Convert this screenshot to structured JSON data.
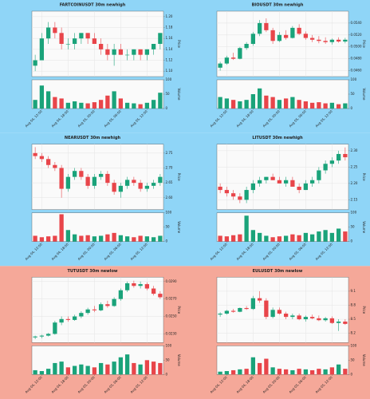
{
  "charts": [
    {
      "type": "candlestick",
      "title": "FARTCOINUSDT 30m newhigh",
      "ylabel": "Price",
      "vlabel": "Volume",
      "background": "#8fd5f7",
      "up_color": "#1aa37a",
      "down_color": "#e8454a",
      "ylim": [
        1.09,
        1.21
      ],
      "yticks": [
        {
          "value": 1.1,
          "label": "1.10"
        },
        {
          "value": 1.12,
          "label": "1.12"
        },
        {
          "value": 1.14,
          "label": "1.14"
        },
        {
          "value": 1.16,
          "label": "1.16"
        },
        {
          "value": 1.18,
          "label": "1.18"
        },
        {
          "value": 1.2,
          "label": "1.20"
        }
      ],
      "vlim": [
        0,
        100
      ],
      "vticks": [
        0,
        50,
        100
      ],
      "xticks": [
        {
          "value": 1,
          "label": "Aug 04, 12:00"
        },
        {
          "value": 5,
          "label": "Aug 04, 18:00"
        },
        {
          "value": 9,
          "label": "Aug 05, 00:00"
        },
        {
          "value": 13,
          "label": "Aug 05, 06:00"
        },
        {
          "value": 17,
          "label": "Aug 05, 12:00"
        }
      ],
      "candles": [
        [
          1.11,
          1.13,
          1.1,
          1.12
        ],
        [
          1.12,
          1.17,
          1.12,
          1.16
        ],
        [
          1.16,
          1.19,
          1.15,
          1.18
        ],
        [
          1.18,
          1.19,
          1.16,
          1.17
        ],
        [
          1.17,
          1.18,
          1.14,
          1.15
        ],
        [
          1.15,
          1.16,
          1.14,
          1.15
        ],
        [
          1.15,
          1.17,
          1.14,
          1.16
        ],
        [
          1.16,
          1.17,
          1.15,
          1.17
        ],
        [
          1.17,
          1.17,
          1.15,
          1.16
        ],
        [
          1.16,
          1.17,
          1.15,
          1.15
        ],
        [
          1.15,
          1.16,
          1.13,
          1.14
        ],
        [
          1.14,
          1.15,
          1.12,
          1.13
        ],
        [
          1.13,
          1.15,
          1.11,
          1.14
        ],
        [
          1.14,
          1.15,
          1.13,
          1.13
        ],
        [
          1.13,
          1.14,
          1.12,
          1.13
        ],
        [
          1.13,
          1.14,
          1.12,
          1.14
        ],
        [
          1.14,
          1.14,
          1.12,
          1.13
        ],
        [
          1.13,
          1.14,
          1.12,
          1.14
        ],
        [
          1.14,
          1.15,
          1.13,
          1.15
        ],
        [
          1.15,
          1.17,
          1.14,
          1.17
        ]
      ],
      "volume": [
        30,
        80,
        60,
        40,
        35,
        20,
        25,
        20,
        18,
        22,
        30,
        45,
        60,
        35,
        20,
        18,
        15,
        20,
        30,
        55
      ]
    },
    {
      "type": "candlestick",
      "title": "BIOUSDT 30m newhigh",
      "ylabel": "Price",
      "vlabel": "Volume",
      "background": "#8fd5f7",
      "up_color": "#1aa37a",
      "down_color": "#e8454a",
      "ylim": [
        0.045,
        0.056
      ],
      "yticks": [
        {
          "value": 0.046,
          "label": "0.0460"
        },
        {
          "value": 0.048,
          "label": "0.0480"
        },
        {
          "value": 0.05,
          "label": "0.0500"
        },
        {
          "value": 0.052,
          "label": "0.0520"
        },
        {
          "value": 0.054,
          "label": "0.0540"
        }
      ],
      "vlim": [
        0,
        100
      ],
      "vticks": [
        0,
        50,
        100
      ],
      "xticks": [
        {
          "value": 1,
          "label": "Aug 04, 12:00"
        },
        {
          "value": 5,
          "label": "Aug 04, 18:00"
        },
        {
          "value": 9,
          "label": "Aug 05, 00:00"
        },
        {
          "value": 13,
          "label": "Aug 05, 06:00"
        },
        {
          "value": 17,
          "label": "Aug 05, 12:00"
        }
      ],
      "candles": [
        [
          0.0465,
          0.0475,
          0.046,
          0.0472
        ],
        [
          0.0472,
          0.0485,
          0.047,
          0.0482
        ],
        [
          0.0482,
          0.049,
          0.0478,
          0.048
        ],
        [
          0.048,
          0.05,
          0.0479,
          0.0498
        ],
        [
          0.0498,
          0.0508,
          0.0495,
          0.0505
        ],
        [
          0.0505,
          0.0525,
          0.0502,
          0.0522
        ],
        [
          0.0522,
          0.0545,
          0.0518,
          0.054
        ],
        [
          0.054,
          0.0548,
          0.0525,
          0.0528
        ],
        [
          0.0528,
          0.0532,
          0.0505,
          0.051
        ],
        [
          0.051,
          0.0525,
          0.0508,
          0.052
        ],
        [
          0.052,
          0.0528,
          0.0512,
          0.0515
        ],
        [
          0.0515,
          0.0535,
          0.0514,
          0.0532
        ],
        [
          0.0532,
          0.0538,
          0.052,
          0.0522
        ],
        [
          0.0522,
          0.0526,
          0.0512,
          0.0515
        ],
        [
          0.0515,
          0.052,
          0.0508,
          0.0512
        ],
        [
          0.0512,
          0.0518,
          0.0506,
          0.051
        ],
        [
          0.051,
          0.0516,
          0.0505,
          0.0508
        ],
        [
          0.0508,
          0.0514,
          0.0504,
          0.0512
        ],
        [
          0.0512,
          0.0516,
          0.0507,
          0.0509
        ],
        [
          0.0509,
          0.0515,
          0.0506,
          0.0512
        ]
      ],
      "volume": [
        40,
        35,
        30,
        25,
        30,
        50,
        70,
        45,
        40,
        30,
        35,
        40,
        30,
        25,
        20,
        22,
        18,
        20,
        15,
        18
      ]
    },
    {
      "type": "candlestick",
      "title": "NEARUSDT 30m newhigh",
      "ylabel": "Price",
      "vlabel": "Volume",
      "background": "#8fd5f7",
      "up_color": "#1aa37a",
      "down_color": "#e8454a",
      "ylim": [
        2.56,
        2.78
      ],
      "yticks": [
        {
          "value": 2.6,
          "label": "2.60"
        },
        {
          "value": 2.65,
          "label": "2.65"
        },
        {
          "value": 2.7,
          "label": "2.70"
        },
        {
          "value": 2.75,
          "label": "2.75"
        }
      ],
      "vlim": [
        0,
        100
      ],
      "vticks": [
        0,
        50,
        100
      ],
      "xticks": [
        {
          "value": 1,
          "label": "Aug 04, 12:00"
        },
        {
          "value": 5,
          "label": "Aug 04, 18:00"
        },
        {
          "value": 9,
          "label": "Aug 05, 00:00"
        },
        {
          "value": 13,
          "label": "Aug 05, 06:00"
        },
        {
          "value": 17,
          "label": "Aug 05, 12:00"
        }
      ],
      "candles": [
        [
          2.75,
          2.77,
          2.73,
          2.74
        ],
        [
          2.74,
          2.75,
          2.72,
          2.73
        ],
        [
          2.73,
          2.74,
          2.7,
          2.71
        ],
        [
          2.71,
          2.72,
          2.69,
          2.7
        ],
        [
          2.7,
          2.71,
          2.6,
          2.63
        ],
        [
          2.63,
          2.68,
          2.62,
          2.67
        ],
        [
          2.67,
          2.7,
          2.66,
          2.69
        ],
        [
          2.69,
          2.7,
          2.66,
          2.67
        ],
        [
          2.67,
          2.68,
          2.63,
          2.64
        ],
        [
          2.64,
          2.68,
          2.63,
          2.67
        ],
        [
          2.67,
          2.69,
          2.66,
          2.68
        ],
        [
          2.68,
          2.69,
          2.64,
          2.65
        ],
        [
          2.65,
          2.66,
          2.61,
          2.62
        ],
        [
          2.62,
          2.65,
          2.6,
          2.64
        ],
        [
          2.64,
          2.67,
          2.63,
          2.66
        ],
        [
          2.66,
          2.67,
          2.64,
          2.65
        ],
        [
          2.65,
          2.66,
          2.62,
          2.63
        ],
        [
          2.63,
          2.65,
          2.62,
          2.64
        ],
        [
          2.64,
          2.66,
          2.63,
          2.65
        ],
        [
          2.65,
          2.68,
          2.64,
          2.67
        ]
      ],
      "volume": [
        20,
        15,
        18,
        20,
        95,
        40,
        25,
        20,
        22,
        18,
        20,
        25,
        30,
        22,
        18,
        15,
        20,
        18,
        15,
        20
      ]
    },
    {
      "type": "candlestick",
      "title": "LITUSDT 30m newhigh",
      "ylabel": "Price",
      "vlabel": "Volume",
      "background": "#8fd5f7",
      "up_color": "#1aa37a",
      "down_color": "#e8454a",
      "ylim": [
        2.12,
        2.32
      ],
      "yticks": [
        {
          "value": 2.15,
          "label": "2.15"
        },
        {
          "value": 2.2,
          "label": "2.20"
        },
        {
          "value": 2.25,
          "label": "2.25"
        },
        {
          "value": 2.3,
          "label": "2.30"
        }
      ],
      "vlim": [
        0,
        100
      ],
      "vticks": [
        0,
        50,
        100
      ],
      "xticks": [
        {
          "value": 1,
          "label": "Aug 04, 12:00"
        },
        {
          "value": 5,
          "label": "Aug 04, 18:00"
        },
        {
          "value": 9,
          "label": "Aug 05, 00:00"
        },
        {
          "value": 13,
          "label": "Aug 05, 06:00"
        },
        {
          "value": 17,
          "label": "Aug 05, 12:00"
        }
      ],
      "candles": [
        [
          2.19,
          2.2,
          2.17,
          2.18
        ],
        [
          2.18,
          2.19,
          2.16,
          2.17
        ],
        [
          2.17,
          2.18,
          2.15,
          2.16
        ],
        [
          2.16,
          2.17,
          2.14,
          2.15
        ],
        [
          2.15,
          2.19,
          2.14,
          2.18
        ],
        [
          2.18,
          2.21,
          2.17,
          2.2
        ],
        [
          2.2,
          2.22,
          2.19,
          2.21
        ],
        [
          2.21,
          2.22,
          2.2,
          2.22
        ],
        [
          2.22,
          2.23,
          2.21,
          2.21
        ],
        [
          2.21,
          2.22,
          2.2,
          2.2
        ],
        [
          2.2,
          2.22,
          2.19,
          2.21
        ],
        [
          2.21,
          2.22,
          2.19,
          2.19
        ],
        [
          2.19,
          2.2,
          2.17,
          2.18
        ],
        [
          2.18,
          2.21,
          2.18,
          2.2
        ],
        [
          2.2,
          2.22,
          2.19,
          2.21
        ],
        [
          2.21,
          2.25,
          2.2,
          2.24
        ],
        [
          2.24,
          2.27,
          2.23,
          2.26
        ],
        [
          2.26,
          2.28,
          2.25,
          2.27
        ],
        [
          2.27,
          2.3,
          2.26,
          2.29
        ],
        [
          2.29,
          2.31,
          2.27,
          2.28
        ]
      ],
      "volume": [
        20,
        18,
        22,
        25,
        90,
        40,
        30,
        20,
        15,
        18,
        20,
        25,
        22,
        30,
        25,
        35,
        40,
        30,
        45,
        35
      ]
    },
    {
      "type": "candlestick",
      "title": "TUTUSDT 30m newlow",
      "ylabel": "Price",
      "vlabel": "Volume",
      "background": "#f5a899",
      "up_color": "#1aa37a",
      "down_color": "#e8454a",
      "ylim": [
        0.022,
        0.0295
      ],
      "yticks": [
        {
          "value": 0.023,
          "label": "0.0230"
        },
        {
          "value": 0.025,
          "label": "0.0250"
        },
        {
          "value": 0.027,
          "label": "0.0270"
        },
        {
          "value": 0.029,
          "label": "0.0290"
        }
      ],
      "vlim": [
        0,
        100
      ],
      "vticks": [
        0,
        50,
        100
      ],
      "xticks": [
        {
          "value": 1,
          "label": "Aug 04, 12:00"
        },
        {
          "value": 5,
          "label": "Aug 04, 18:00"
        },
        {
          "value": 9,
          "label": "Aug 05, 00:00"
        },
        {
          "value": 13,
          "label": "Aug 05, 06:00"
        },
        {
          "value": 17,
          "label": "Aug 05, 12:00"
        }
      ],
      "candles": [
        [
          0.0226,
          0.0228,
          0.0224,
          0.0227
        ],
        [
          0.0227,
          0.0229,
          0.0225,
          0.0228
        ],
        [
          0.0228,
          0.0231,
          0.0227,
          0.023
        ],
        [
          0.023,
          0.0245,
          0.0229,
          0.0243
        ],
        [
          0.0243,
          0.025,
          0.024,
          0.0247
        ],
        [
          0.0247,
          0.025,
          0.0244,
          0.0246
        ],
        [
          0.0246,
          0.0252,
          0.0245,
          0.025
        ],
        [
          0.025,
          0.0256,
          0.0248,
          0.0254
        ],
        [
          0.0254,
          0.026,
          0.0252,
          0.0258
        ],
        [
          0.0258,
          0.0262,
          0.0255,
          0.0257
        ],
        [
          0.0257,
          0.0266,
          0.0256,
          0.0264
        ],
        [
          0.0264,
          0.0268,
          0.026,
          0.0262
        ],
        [
          0.0262,
          0.0272,
          0.0261,
          0.027
        ],
        [
          0.027,
          0.0282,
          0.0268,
          0.028
        ],
        [
          0.028,
          0.029,
          0.0278,
          0.0288
        ],
        [
          0.0288,
          0.0291,
          0.0283,
          0.0285
        ],
        [
          0.0285,
          0.029,
          0.0282,
          0.0287
        ],
        [
          0.0287,
          0.0289,
          0.028,
          0.0282
        ],
        [
          0.0282,
          0.0285,
          0.0274,
          0.0276
        ],
        [
          0.0276,
          0.0279,
          0.027,
          0.0272
        ]
      ],
      "volume": [
        15,
        12,
        20,
        40,
        45,
        25,
        30,
        35,
        30,
        25,
        40,
        35,
        45,
        60,
        70,
        40,
        35,
        50,
        45,
        40
      ]
    },
    {
      "type": "candlestick",
      "title": "EULUSDT 30m newlow",
      "ylabel": "Price",
      "vlabel": "Volume",
      "background": "#f5a899",
      "up_color": "#1aa37a",
      "down_color": "#e8454a",
      "ylim": [
        8.0,
        9.4
      ],
      "yticks": [
        8.2,
        8.5,
        8.8,
        9.1
      ],
      "vlim": [
        0,
        100
      ],
      "vticks": [
        0,
        50,
        100
      ],
      "xticks": [
        {
          "value": 1,
          "label": "Aug 04, 12:00"
        },
        {
          "value": 5,
          "label": "Aug 04, 18:00"
        },
        {
          "value": 9,
          "label": "Aug 05, 00:00"
        },
        {
          "value": 13,
          "label": "Aug 05, 06:00"
        },
        {
          "value": 17,
          "label": "Aug 05, 12:00"
        }
      ],
      "candles": [
        [
          8.6,
          8.65,
          8.55,
          8.62
        ],
        [
          8.62,
          8.7,
          8.6,
          8.68
        ],
        [
          8.68,
          8.72,
          8.64,
          8.66
        ],
        [
          8.66,
          8.75,
          8.65,
          8.74
        ],
        [
          8.74,
          8.78,
          8.7,
          8.72
        ],
        [
          8.72,
          9.0,
          8.7,
          8.95
        ],
        [
          8.95,
          9.1,
          8.85,
          8.9
        ],
        [
          8.9,
          8.95,
          8.5,
          8.55
        ],
        [
          8.55,
          8.75,
          8.52,
          8.7
        ],
        [
          8.7,
          8.75,
          8.6,
          8.62
        ],
        [
          8.62,
          8.66,
          8.5,
          8.55
        ],
        [
          8.55,
          8.62,
          8.5,
          8.58
        ],
        [
          8.58,
          8.62,
          8.48,
          8.5
        ],
        [
          8.5,
          8.58,
          8.45,
          8.55
        ],
        [
          8.55,
          8.6,
          8.5,
          8.52
        ],
        [
          8.52,
          8.58,
          8.46,
          8.48
        ],
        [
          8.48,
          8.55,
          8.45,
          8.52
        ],
        [
          8.52,
          8.56,
          8.4,
          8.42
        ],
        [
          8.42,
          8.5,
          8.25,
          8.45
        ],
        [
          8.45,
          8.5,
          8.38,
          8.4
        ]
      ],
      "volume": [
        10,
        12,
        15,
        18,
        20,
        60,
        40,
        55,
        25,
        20,
        18,
        15,
        20,
        18,
        15,
        20,
        18,
        25,
        35,
        20
      ]
    }
  ]
}
